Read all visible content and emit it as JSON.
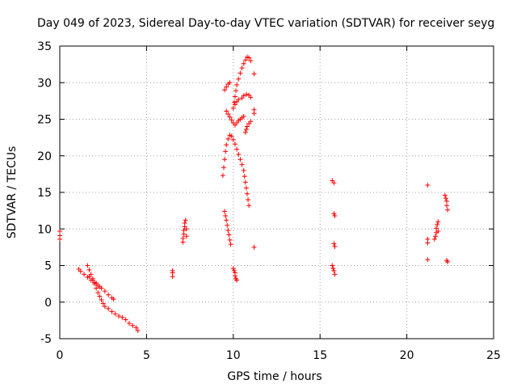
{
  "chart_data": {
    "type": "scatter",
    "title": "Day 049 of 2023, Sidereal Day-to-day VTEC variation (SDTVAR) for receiver seyg",
    "xlabel": "GPS time / hours",
    "ylabel": "SDTVAR / TECUs",
    "xlim": [
      0,
      25
    ],
    "ylim": [
      -5,
      35
    ],
    "xticks": [
      "0",
      "5",
      "10",
      "15",
      "20",
      "25"
    ],
    "yticks": [
      "-5",
      "0",
      "5",
      "10",
      "15",
      "20",
      "25",
      "30",
      "35"
    ],
    "grid": true,
    "marker": "+",
    "color": "#ff0000",
    "segments": [
      [
        [
          0.0,
          8.6
        ],
        [
          0.0,
          9.1
        ],
        [
          0.0,
          9.7
        ]
      ],
      [
        [
          1.1,
          4.5
        ],
        [
          1.2,
          4.2
        ],
        [
          1.4,
          3.8
        ],
        [
          1.6,
          3.4
        ],
        [
          1.8,
          3.0
        ],
        [
          2.0,
          2.7
        ],
        [
          2.2,
          2.3
        ],
        [
          2.4,
          1.9
        ],
        [
          2.6,
          1.5
        ],
        [
          2.8,
          1.0
        ],
        [
          3.0,
          0.6
        ],
        [
          3.1,
          0.4
        ]
      ],
      [
        [
          1.6,
          5.0
        ],
        [
          1.7,
          4.4
        ],
        [
          1.8,
          3.8
        ],
        [
          1.9,
          3.2
        ],
        [
          2.0,
          2.5
        ],
        [
          2.1,
          1.9
        ],
        [
          2.2,
          1.3
        ],
        [
          2.3,
          0.8
        ],
        [
          2.4,
          0.3
        ],
        [
          2.5,
          -0.2
        ],
        [
          2.6,
          -0.6
        ],
        [
          2.8,
          -0.9
        ],
        [
          3.0,
          -1.3
        ],
        [
          3.2,
          -1.6
        ],
        [
          3.4,
          -1.9
        ],
        [
          3.6,
          -2.1
        ],
        [
          3.8,
          -2.4
        ],
        [
          4.0,
          -2.9
        ],
        [
          4.2,
          -3.2
        ],
        [
          4.4,
          -3.5
        ],
        [
          4.5,
          -3.9
        ]
      ],
      [
        [
          1.7,
          3.5
        ],
        [
          1.9,
          3.0
        ],
        [
          2.1,
          2.6
        ],
        [
          2.3,
          2.1
        ]
      ],
      [
        [
          6.5,
          3.5
        ],
        [
          6.5,
          4.0
        ],
        [
          6.5,
          4.3
        ]
      ],
      [
        [
          7.1,
          8.2
        ],
        [
          7.1,
          8.7
        ],
        [
          7.15,
          9.3
        ],
        [
          7.15,
          9.8
        ],
        [
          7.2,
          10.3
        ],
        [
          7.2,
          10.8
        ],
        [
          7.25,
          11.2
        ],
        [
          7.3,
          10.0
        ],
        [
          7.3,
          9.0
        ]
      ],
      [
        [
          9.4,
          17.3
        ],
        [
          9.45,
          18.4
        ],
        [
          9.5,
          19.5
        ],
        [
          9.55,
          20.6
        ],
        [
          9.6,
          21.5
        ],
        [
          9.7,
          22.3
        ],
        [
          9.8,
          22.8
        ],
        [
          9.9,
          22.7
        ],
        [
          10.0,
          22.2
        ],
        [
          10.1,
          21.6
        ],
        [
          10.2,
          20.9
        ],
        [
          10.3,
          20.2
        ],
        [
          10.4,
          19.5
        ],
        [
          10.5,
          18.8
        ],
        [
          10.6,
          18.0
        ],
        [
          10.65,
          17.2
        ],
        [
          10.7,
          16.4
        ],
        [
          10.75,
          15.6
        ],
        [
          10.8,
          14.8
        ],
        [
          10.85,
          14.0
        ],
        [
          10.9,
          13.2
        ]
      ],
      [
        [
          9.5,
          12.4
        ],
        [
          9.55,
          11.8
        ],
        [
          9.6,
          11.2
        ],
        [
          9.65,
          10.5
        ],
        [
          9.7,
          9.8
        ],
        [
          9.75,
          9.2
        ],
        [
          9.8,
          8.5
        ],
        [
          9.85,
          7.9
        ]
      ],
      [
        [
          9.5,
          29.0
        ],
        [
          9.6,
          29.4
        ],
        [
          9.7,
          29.8
        ],
        [
          9.8,
          30.0
        ]
      ],
      [
        [
          9.6,
          26.1
        ],
        [
          9.7,
          25.7
        ],
        [
          9.8,
          25.3
        ],
        [
          9.9,
          24.9
        ],
        [
          10.0,
          24.5
        ],
        [
          10.1,
          24.2
        ],
        [
          10.2,
          24.5
        ],
        [
          10.3,
          24.8
        ],
        [
          10.4,
          25.0
        ],
        [
          10.5,
          25.2
        ],
        [
          10.6,
          25.4
        ]
      ],
      [
        [
          10.0,
          26.5
        ],
        [
          10.05,
          27.3
        ],
        [
          10.1,
          28.1
        ],
        [
          10.15,
          28.9
        ],
        [
          10.2,
          29.7
        ],
        [
          10.3,
          30.5
        ],
        [
          10.4,
          31.3
        ],
        [
          10.5,
          32.0
        ],
        [
          10.6,
          32.6
        ],
        [
          10.7,
          33.1
        ],
        [
          10.8,
          33.5
        ],
        [
          10.9,
          33.4
        ],
        [
          11.0,
          33.0
        ]
      ],
      [
        [
          10.1,
          27.0
        ],
        [
          10.2,
          27.4
        ],
        [
          10.3,
          27.7
        ],
        [
          10.5,
          27.9
        ],
        [
          10.6,
          28.2
        ],
        [
          10.75,
          28.4
        ],
        [
          10.9,
          28.3
        ],
        [
          11.0,
          28.0
        ]
      ],
      [
        [
          10.7,
          23.2
        ],
        [
          10.75,
          23.6
        ],
        [
          10.8,
          24.0
        ],
        [
          10.9,
          24.4
        ],
        [
          11.0,
          24.7
        ]
      ],
      [
        [
          10.0,
          4.6
        ],
        [
          10.05,
          4.3
        ],
        [
          10.1,
          4.0
        ],
        [
          10.1,
          3.6
        ],
        [
          10.15,
          3.2
        ],
        [
          10.2,
          3.0
        ]
      ],
      [
        [
          11.2,
          31.2
        ]
      ],
      [
        [
          11.2,
          25.8
        ]
      ],
      [
        [
          11.2,
          26.3
        ]
      ],
      [
        [
          11.2,
          7.5
        ]
      ],
      [
        [
          15.7,
          16.6
        ],
        [
          15.8,
          16.3
        ]
      ],
      [
        [
          15.8,
          12.1
        ],
        [
          15.85,
          11.8
        ]
      ],
      [
        [
          15.8,
          8.0
        ],
        [
          15.85,
          7.6
        ]
      ],
      [
        [
          15.7,
          5.0
        ],
        [
          15.75,
          4.6
        ],
        [
          15.8,
          4.3
        ],
        [
          15.85,
          3.8
        ]
      ],
      [
        [
          21.2,
          16.0
        ]
      ],
      [
        [
          21.2,
          8.6
        ],
        [
          21.2,
          8.1
        ]
      ],
      [
        [
          21.2,
          5.8
        ]
      ],
      [
        [
          21.6,
          8.6
        ],
        [
          21.65,
          9.0
        ],
        [
          21.7,
          9.5
        ],
        [
          21.7,
          10.1
        ],
        [
          21.75,
          10.6
        ],
        [
          21.8,
          11.0
        ],
        [
          21.8,
          9.7
        ]
      ],
      [
        [
          22.2,
          14.6
        ],
        [
          22.25,
          14.2
        ],
        [
          22.3,
          13.8
        ],
        [
          22.3,
          13.2
        ],
        [
          22.35,
          12.6
        ]
      ],
      [
        [
          22.3,
          5.7
        ],
        [
          22.35,
          5.5
        ]
      ]
    ]
  }
}
